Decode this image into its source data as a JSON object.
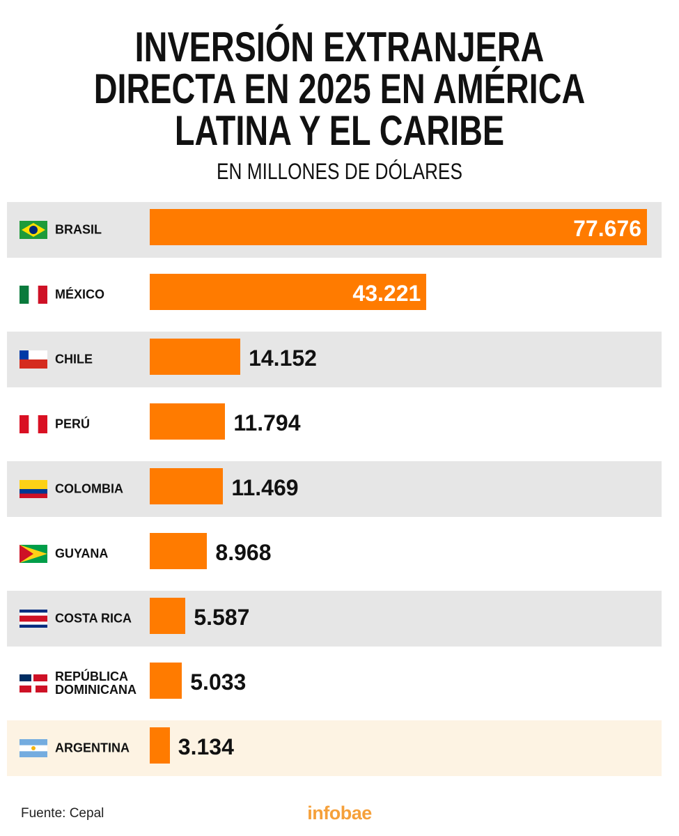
{
  "chart_data": {
    "type": "bar",
    "orientation": "horizontal",
    "title": [
      "INVERSIÓN EXTRANJERA",
      "DIRECTA EN 2025 EN AMÉRICA",
      "LATINA Y EL CARIBE"
    ],
    "subtitle": "EN MILLONES DE DÓLARES",
    "categories": [
      "BRASIL",
      "MÉXICO",
      "CHILE",
      "PERÚ",
      "COLOMBIA",
      "GUYANA",
      "COSTA RICA",
      "REPÚBLICA DOMINICANA",
      "ARGENTINA"
    ],
    "values": [
      77676,
      43221,
      14152,
      11794,
      11469,
      8968,
      5587,
      5033,
      3134
    ],
    "value_labels": [
      "77.676",
      "43.221",
      "14.152",
      "11.794",
      "11.469",
      "8.968",
      "5.587",
      "5.033",
      "3.134"
    ],
    "color": "#ff7b00",
    "source": "Fuente: Cepal",
    "brand": "infobae"
  }
}
